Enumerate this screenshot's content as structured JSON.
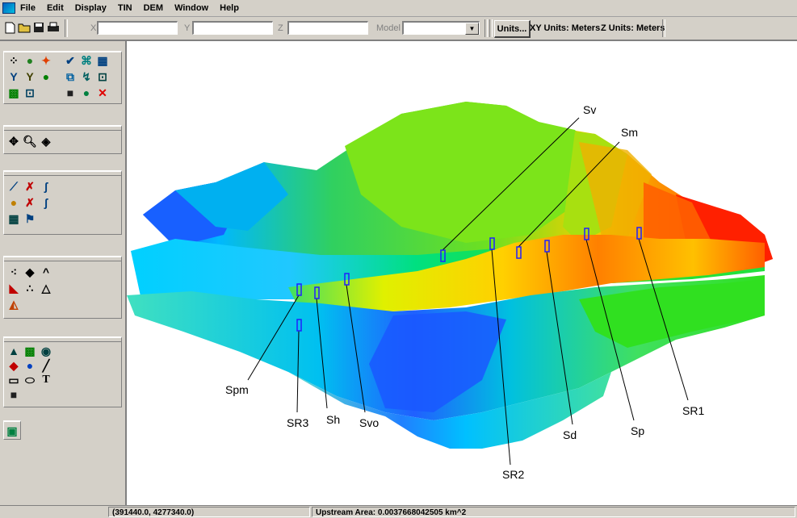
{
  "menubar": {
    "items": [
      "File",
      "Edit",
      "Display",
      "TIN",
      "DEM",
      "Window",
      "Help"
    ]
  },
  "toolbar": {
    "icons": [
      "new-file-icon",
      "open-folder-icon",
      "save-icon",
      "print-icon"
    ],
    "x_label": "X",
    "y_label": "Y",
    "z_label": "Z",
    "x_value": "",
    "y_value": "",
    "z_value": "",
    "model_label": "Model",
    "model_value": "",
    "units_button": "Units...",
    "xy_units": "XY Units: Meters",
    "z_units": "Z Units: Meters"
  },
  "palette": {
    "groups": [
      {
        "name": "display-tools",
        "icons": [
          "select-arrow-icon",
          "globe-icon",
          "star-icon",
          "check-icon",
          "grid-icon",
          "tree-icon",
          "fork-icon",
          "sphere-icon",
          "network-icon",
          "wand-icon",
          "map-icon",
          "contour-icon",
          "box-icon",
          "dark-map-icon",
          "color-globe-icon",
          "close-x-icon"
        ]
      },
      {
        "name": "view-tools",
        "icons": [
          "pan-icon",
          "zoom-icon",
          "rotate-icon"
        ]
      },
      {
        "name": "edit-tools",
        "icons": [
          "feature-icon",
          "x-tool-icon",
          "curve-icon",
          "circle-tool-icon",
          "x-node-icon",
          "arc-icon",
          "grid-tool-icon",
          "flag-icon"
        ]
      },
      {
        "name": "tin-tools",
        "icons": [
          "point-tool-icon",
          "peak-icon",
          "caret-icon",
          "triangle-color-icon",
          "dots-icon",
          "triangle-icon",
          "mesh-icon"
        ]
      },
      {
        "name": "drawing-tools",
        "icons": [
          "terrain-icon",
          "green-map-icon",
          "bowl-icon",
          "fill-icon",
          "drop-icon",
          "line-icon",
          "rectangle-icon",
          "ellipse-icon",
          "text-icon",
          "layers-icon"
        ]
      }
    ],
    "extra_icon": "catchment-icon"
  },
  "canvas": {
    "view": "3D terrain (DEM) colored by elevation",
    "colors": {
      "low": "#1a4cff",
      "mid_low": "#00c8e6",
      "mid": "#20e020",
      "mid_high": "#f4f000",
      "high": "#ff7000",
      "peak": "#ff0000",
      "marker": "#2020ff"
    },
    "stations": [
      {
        "label": "Sv"
      },
      {
        "label": "Sm"
      },
      {
        "label": "Spm"
      },
      {
        "label": "SR3"
      },
      {
        "label": "Sh"
      },
      {
        "label": "Svo"
      },
      {
        "label": "SR2"
      },
      {
        "label": "Sd"
      },
      {
        "label": "Sp"
      },
      {
        "label": "SR1"
      }
    ]
  },
  "statusbar": {
    "coordinates": "(391440.0, 4277340.0)",
    "upstream_area": "Upstream Area: 0.0037668042505 km^2"
  }
}
